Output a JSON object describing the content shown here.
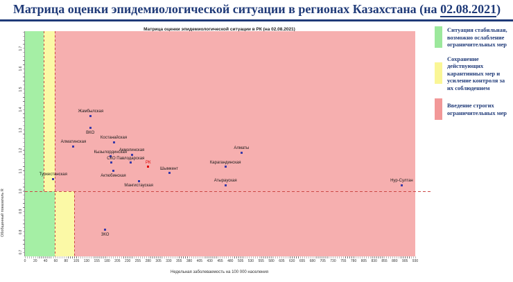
{
  "page_title": {
    "prefix": "Матрица оценки эпидемиологической ситуации в регионах Казахстана (на ",
    "date": "02.08.2021",
    "suffix": ")"
  },
  "legend": {
    "items": [
      {
        "color": "#9CE89C",
        "swatch_name": "green-zone-swatch",
        "text": "Ситуация стабильная, возможно ослабление ограничительных мер"
      },
      {
        "color": "#FAF696",
        "swatch_name": "yellow-zone-swatch",
        "text": "Сохранение действующих карантинных мер и усиление контроля за их соблюдением"
      },
      {
        "color": "#F29898",
        "swatch_name": "red-zone-swatch",
        "text": "Введение строгих ограничительных мер"
      }
    ]
  },
  "chart_data": {
    "type": "scatter",
    "title": "Матрица оценки эпидемиологической ситуации в РК (на 02.08.2021)",
    "xlabel": "Недельная заболеваемость на 100 000 населения",
    "ylabel": "Обобщенный показатель R",
    "ylim": [
      0.7,
      1.7
    ],
    "y_tick_labels": [
      "1.7",
      "1.6",
      "1.5",
      "1.4",
      "1.3",
      "1.2",
      "1.1",
      "1.0",
      "0.9",
      "0.8",
      "0.7"
    ],
    "x_tick_labels": [
      "0",
      "20",
      "40",
      "60",
      "80",
      "105",
      "130",
      "155",
      "180",
      "205",
      "230",
      "255",
      "280",
      "305",
      "330",
      "355",
      "380",
      "405",
      "430",
      "455",
      "480",
      "505",
      "530",
      "555",
      "580",
      "605",
      "630",
      "655",
      "680",
      "705",
      "730",
      "755",
      "780",
      "805",
      "830",
      "855",
      "880",
      "905",
      "930"
    ],
    "grid": false,
    "legend_position": "right",
    "reference_line": {
      "axis": "y",
      "value": 1.0,
      "style": "dashed",
      "color": "#cc4744"
    },
    "zones": {
      "above_R1": [
        {
          "color": "#A5EFA5",
          "from": 0,
          "to": 37
        },
        {
          "color": "#FBF9A6",
          "from": 37,
          "to": 58
        },
        {
          "color": "#F6AFAF",
          "from": 58,
          "to": 930
        }
      ],
      "below_R1": [
        {
          "color": "#A5EFA5",
          "from": 0,
          "to": 58
        },
        {
          "color": "#FBF9A6",
          "from": 58,
          "to": 100
        },
        {
          "color": "#F6AFAF",
          "from": 100,
          "to": 930
        }
      ],
      "boundary_style": "dashed",
      "boundary_color": "#cc4744"
    },
    "points": [
      {
        "name": "Жамбылская",
        "x": 140,
        "r": 1.37,
        "label_pos": "above",
        "highlight": false
      },
      {
        "name": "ВКО",
        "x": 139,
        "r": 1.31,
        "label_pos": "below",
        "highlight": false
      },
      {
        "name": "Костанайская",
        "x": 196,
        "r": 1.24,
        "label_pos": "above",
        "highlight": false
      },
      {
        "name": "Алматинская",
        "x": 98,
        "r": 1.22,
        "label_pos": "above",
        "highlight": false
      },
      {
        "name": "Алматы",
        "x": 507,
        "r": 1.19,
        "label_pos": "above",
        "highlight": false
      },
      {
        "name": "Акмолинская",
        "x": 240,
        "r": 1.18,
        "label_pos": "above",
        "highlight": false
      },
      {
        "name": "Кызылординская",
        "x": 188,
        "r": 1.17,
        "label_pos": "above",
        "highlight": false
      },
      {
        "name": "СКО",
        "x": 190,
        "r": 1.14,
        "label_pos": "above",
        "highlight": false
      },
      {
        "name": "Павлодарская",
        "x": 237,
        "r": 1.14,
        "label_pos": "above",
        "highlight": false
      },
      {
        "name": "РК",
        "x": 280,
        "r": 1.12,
        "label_pos": "above",
        "highlight": true
      },
      {
        "name": "Карагандинская",
        "x": 468,
        "r": 1.12,
        "label_pos": "above",
        "highlight": false
      },
      {
        "name": "Актюбинская",
        "x": 195,
        "r": 1.1,
        "label_pos": "below",
        "highlight": false
      },
      {
        "name": "Шымкент",
        "x": 331,
        "r": 1.09,
        "label_pos": "above",
        "highlight": false
      },
      {
        "name": "Туркестанская",
        "x": 55,
        "r": 1.06,
        "label_pos": "above",
        "highlight": false
      },
      {
        "name": "Мангистауская",
        "x": 257,
        "r": 1.05,
        "label_pos": "below",
        "highlight": false
      },
      {
        "name": "Атырауская",
        "x": 468,
        "r": 1.03,
        "label_pos": "above",
        "highlight": false
      },
      {
        "name": "Нур-Султан",
        "x": 897,
        "r": 1.03,
        "label_pos": "above",
        "highlight": false
      },
      {
        "name": "ЗКО",
        "x": 175,
        "r": 0.81,
        "label_pos": "below",
        "highlight": false
      }
    ]
  }
}
